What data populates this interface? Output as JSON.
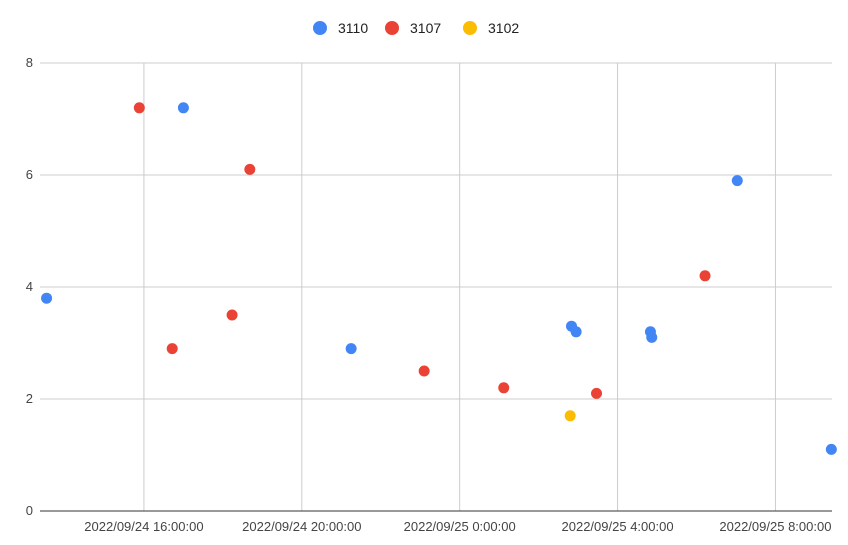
{
  "chart_data": {
    "type": "scatter",
    "title": "",
    "xlabel": "",
    "ylabel": "",
    "ylim": [
      0,
      8
    ],
    "yticks": [
      0,
      2,
      4,
      6,
      8
    ],
    "xlim": [
      "2022/09/24 13:22:00",
      "2022/09/25 9:26:00"
    ],
    "xticks": [
      "2022/09/24 16:00:00",
      "2022/09/24 20:00:00",
      "2022/09/25 0:00:00",
      "2022/09/25 4:00:00",
      "2022/09/25 8:00:00"
    ],
    "grid": true,
    "legend": "top-center",
    "series": [
      {
        "name": "3110",
        "color": "#4285F4",
        "points": [
          {
            "x": "2022/09/24 13:32:00",
            "y": 3.8
          },
          {
            "x": "2022/09/24 17:00:00",
            "y": 7.2
          },
          {
            "x": "2022/09/24 21:15:00",
            "y": 2.9
          },
          {
            "x": "2022/09/25 2:50:00",
            "y": 3.3
          },
          {
            "x": "2022/09/25 2:57:00",
            "y": 3.2
          },
          {
            "x": "2022/09/25 4:50:00",
            "y": 3.2
          },
          {
            "x": "2022/09/25 4:52:00",
            "y": 3.1
          },
          {
            "x": "2022/09/25 7:02:00",
            "y": 5.9
          },
          {
            "x": "2022/09/25 9:25:00",
            "y": 1.1
          }
        ]
      },
      {
        "name": "3107",
        "color": "#EA4335",
        "points": [
          {
            "x": "2022/09/24 15:53:00",
            "y": 7.2
          },
          {
            "x": "2022/09/24 16:43:00",
            "y": 2.9
          },
          {
            "x": "2022/09/24 18:14:00",
            "y": 3.5
          },
          {
            "x": "2022/09/24 18:41:00",
            "y": 6.1
          },
          {
            "x": "2022/09/24 23:06:00",
            "y": 2.5
          },
          {
            "x": "2022/09/25 1:07:00",
            "y": 2.2
          },
          {
            "x": "2022/09/25 3:28:00",
            "y": 2.1
          },
          {
            "x": "2022/09/25 6:13:00",
            "y": 4.2
          }
        ]
      },
      {
        "name": "3102",
        "color": "#FBBC04",
        "points": [
          {
            "x": "2022/09/25 2:48:00",
            "y": 1.7
          }
        ]
      }
    ]
  }
}
